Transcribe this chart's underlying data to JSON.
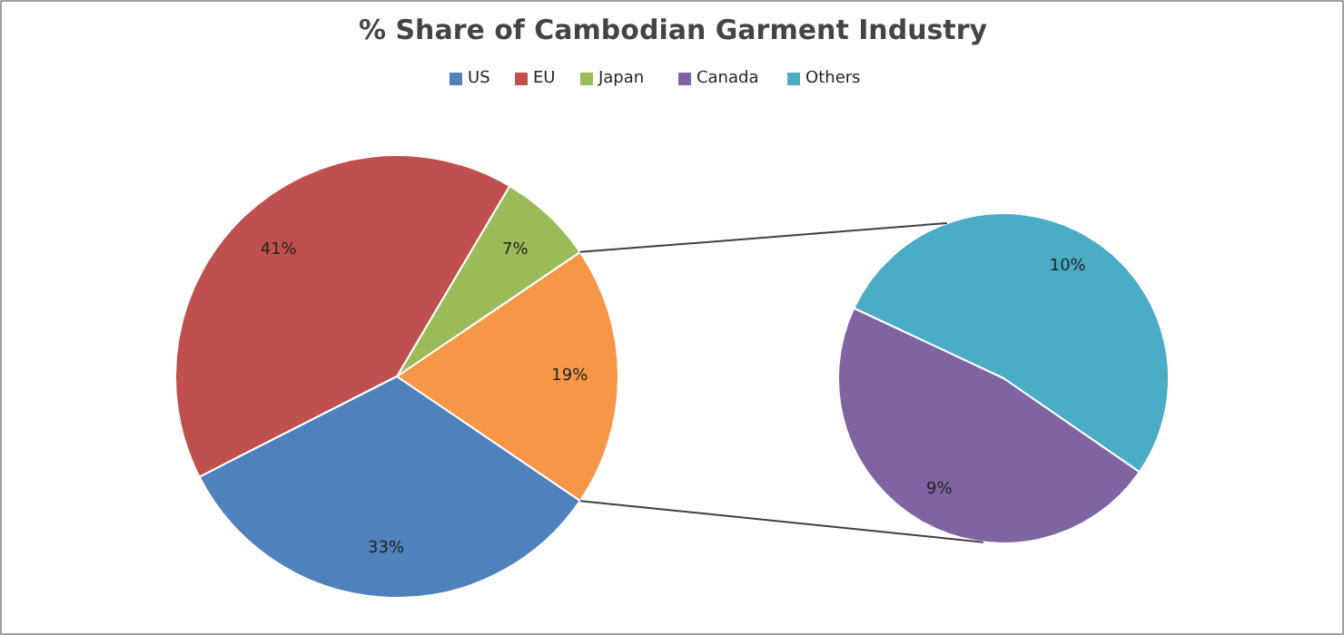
{
  "chart_data": [
    {
      "type": "pie",
      "title": "% Share of Cambodian Garment Industry",
      "categories": [
        "US",
        "EU",
        "Japan",
        null
      ],
      "values": [
        33,
        41,
        7,
        19
      ],
      "colors": [
        "#4f81bd",
        "#c0504d",
        "#9bbb59",
        "#f79646"
      ],
      "value_labels": [
        "33%",
        "41%",
        "7%",
        "19%"
      ],
      "legend": "top"
    },
    {
      "type": "pie",
      "categories": [
        "Canada",
        "Others"
      ],
      "values": [
        9,
        10
      ],
      "colors": [
        "#8064a2",
        "#4bacc6"
      ],
      "value_labels": [
        "9%",
        "10%"
      ],
      "legend": "top"
    }
  ]
}
